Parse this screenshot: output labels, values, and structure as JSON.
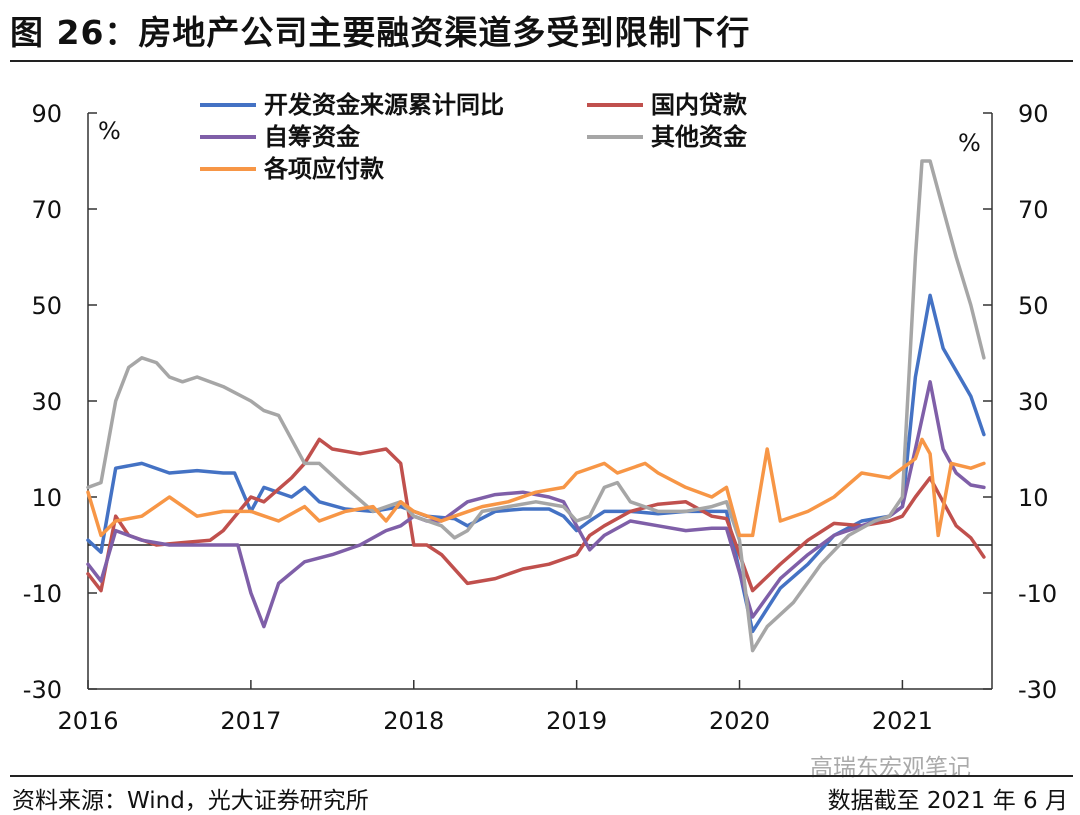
{
  "title": "图 26：房地产公司主要融资渠道多受到限制下行",
  "source": "资料来源：Wind，光大证券研究所",
  "cutoff": "数据截至 2021 年 6 月",
  "watermark": "高瑞东宏观笔记",
  "chart_data": {
    "type": "line",
    "ylim": [
      -30,
      90
    ],
    "yticks": [
      -30,
      -10,
      10,
      30,
      50,
      70,
      90
    ],
    "ylabel_left": "%",
    "ylabel_right": "%",
    "xlim": [
      2016.0,
      2021.55
    ],
    "xticks": [
      "2016",
      "2017",
      "2018",
      "2019",
      "2020",
      "2021"
    ],
    "zero_line": true,
    "legend_position": "top",
    "series": [
      {
        "name": "开发资金来源累计同比",
        "color": "#4472C4",
        "points": [
          [
            2016.0,
            1
          ],
          [
            2016.08,
            -1.5
          ],
          [
            2016.17,
            16
          ],
          [
            2016.33,
            17
          ],
          [
            2016.5,
            15
          ],
          [
            2016.67,
            15.5
          ],
          [
            2016.83,
            15
          ],
          [
            2016.9,
            15
          ],
          [
            2017.0,
            7
          ],
          [
            2017.08,
            12
          ],
          [
            2017.25,
            10
          ],
          [
            2017.33,
            12
          ],
          [
            2017.42,
            9
          ],
          [
            2017.58,
            7.5
          ],
          [
            2017.75,
            7
          ],
          [
            2017.92,
            8
          ],
          [
            2018.08,
            6
          ],
          [
            2018.25,
            5.5
          ],
          [
            2018.33,
            4
          ],
          [
            2018.5,
            7
          ],
          [
            2018.67,
            7.5
          ],
          [
            2018.83,
            7.5
          ],
          [
            2018.92,
            6
          ],
          [
            2019.0,
            3
          ],
          [
            2019.08,
            5
          ],
          [
            2019.17,
            7
          ],
          [
            2019.33,
            7
          ],
          [
            2019.5,
            6.5
          ],
          [
            2019.67,
            7
          ],
          [
            2019.83,
            7
          ],
          [
            2019.92,
            7
          ],
          [
            2020.08,
            -18
          ],
          [
            2020.25,
            -9
          ],
          [
            2020.42,
            -4
          ],
          [
            2020.58,
            2
          ],
          [
            2020.75,
            5
          ],
          [
            2020.92,
            6
          ],
          [
            2021.0,
            8
          ],
          [
            2021.08,
            35
          ],
          [
            2021.17,
            52
          ],
          [
            2021.25,
            41
          ],
          [
            2021.42,
            31
          ],
          [
            2021.5,
            23
          ]
        ]
      },
      {
        "name": "国内贷款",
        "color": "#C0504D",
        "points": [
          [
            2016.0,
            -6
          ],
          [
            2016.08,
            -9.5
          ],
          [
            2016.17,
            6
          ],
          [
            2016.25,
            2
          ],
          [
            2016.42,
            0
          ],
          [
            2016.58,
            0.5
          ],
          [
            2016.75,
            1
          ],
          [
            2016.83,
            3
          ],
          [
            2017.0,
            10
          ],
          [
            2017.08,
            9
          ],
          [
            2017.25,
            14
          ],
          [
            2017.33,
            17
          ],
          [
            2017.42,
            22
          ],
          [
            2017.5,
            20
          ],
          [
            2017.67,
            19
          ],
          [
            2017.83,
            20
          ],
          [
            2017.92,
            17
          ],
          [
            2018.0,
            0
          ],
          [
            2018.08,
            0
          ],
          [
            2018.17,
            -2
          ],
          [
            2018.33,
            -8
          ],
          [
            2018.5,
            -7
          ],
          [
            2018.67,
            -5
          ],
          [
            2018.83,
            -4
          ],
          [
            2019.0,
            -2
          ],
          [
            2019.08,
            2
          ],
          [
            2019.17,
            4
          ],
          [
            2019.33,
            7
          ],
          [
            2019.5,
            8.5
          ],
          [
            2019.67,
            9
          ],
          [
            2019.83,
            6
          ],
          [
            2019.92,
            5.5
          ],
          [
            2020.08,
            -9.5
          ],
          [
            2020.25,
            -4
          ],
          [
            2020.42,
            1
          ],
          [
            2020.58,
            4.5
          ],
          [
            2020.75,
            4
          ],
          [
            2020.92,
            5
          ],
          [
            2021.0,
            6
          ],
          [
            2021.08,
            10
          ],
          [
            2021.17,
            14
          ],
          [
            2021.25,
            9
          ],
          [
            2021.33,
            4
          ],
          [
            2021.42,
            1.5
          ],
          [
            2021.5,
            -2.5
          ]
        ]
      },
      {
        "name": "自筹资金",
        "color": "#7F5FA8",
        "points": [
          [
            2016.0,
            -4
          ],
          [
            2016.08,
            -7.5
          ],
          [
            2016.17,
            3
          ],
          [
            2016.33,
            1
          ],
          [
            2016.5,
            0
          ],
          [
            2016.67,
            0
          ],
          [
            2016.83,
            0
          ],
          [
            2016.92,
            0
          ],
          [
            2017.0,
            -10
          ],
          [
            2017.08,
            -17
          ],
          [
            2017.17,
            -8
          ],
          [
            2017.33,
            -3.5
          ],
          [
            2017.5,
            -2
          ],
          [
            2017.67,
            0
          ],
          [
            2017.83,
            3
          ],
          [
            2017.92,
            4
          ],
          [
            2018.0,
            6
          ],
          [
            2018.08,
            5
          ],
          [
            2018.17,
            5
          ],
          [
            2018.33,
            9
          ],
          [
            2018.5,
            10.5
          ],
          [
            2018.67,
            11
          ],
          [
            2018.83,
            10
          ],
          [
            2018.92,
            9
          ],
          [
            2019.0,
            4
          ],
          [
            2019.08,
            -1
          ],
          [
            2019.17,
            2
          ],
          [
            2019.33,
            5
          ],
          [
            2019.5,
            4
          ],
          [
            2019.67,
            3
          ],
          [
            2019.83,
            3.5
          ],
          [
            2019.92,
            3.5
          ],
          [
            2020.08,
            -15
          ],
          [
            2020.25,
            -7
          ],
          [
            2020.42,
            -2
          ],
          [
            2020.58,
            2
          ],
          [
            2020.75,
            4
          ],
          [
            2020.92,
            6
          ],
          [
            2021.0,
            8
          ],
          [
            2021.08,
            20
          ],
          [
            2021.17,
            34
          ],
          [
            2021.25,
            20
          ],
          [
            2021.33,
            15
          ],
          [
            2021.42,
            12.5
          ],
          [
            2021.5,
            12
          ]
        ]
      },
      {
        "name": "其他资金",
        "color": "#A6A6A6",
        "points": [
          [
            2016.0,
            12
          ],
          [
            2016.08,
            13
          ],
          [
            2016.17,
            30
          ],
          [
            2016.25,
            37
          ],
          [
            2016.33,
            39
          ],
          [
            2016.42,
            38
          ],
          [
            2016.5,
            35
          ],
          [
            2016.58,
            34
          ],
          [
            2016.67,
            35
          ],
          [
            2016.83,
            33
          ],
          [
            2017.0,
            30
          ],
          [
            2017.08,
            28
          ],
          [
            2017.17,
            27
          ],
          [
            2017.25,
            22
          ],
          [
            2017.33,
            17
          ],
          [
            2017.42,
            17
          ],
          [
            2017.58,
            12
          ],
          [
            2017.75,
            7
          ],
          [
            2017.92,
            9
          ],
          [
            2018.0,
            6
          ],
          [
            2018.17,
            4
          ],
          [
            2018.25,
            1.5
          ],
          [
            2018.33,
            3
          ],
          [
            2018.42,
            7
          ],
          [
            2018.58,
            8
          ],
          [
            2018.75,
            9
          ],
          [
            2018.92,
            8
          ],
          [
            2019.0,
            5
          ],
          [
            2019.08,
            6
          ],
          [
            2019.17,
            12
          ],
          [
            2019.25,
            13
          ],
          [
            2019.33,
            9
          ],
          [
            2019.5,
            7
          ],
          [
            2019.67,
            7
          ],
          [
            2019.83,
            8
          ],
          [
            2019.92,
            9
          ],
          [
            2020.0,
            1
          ],
          [
            2020.08,
            -22
          ],
          [
            2020.17,
            -17
          ],
          [
            2020.33,
            -12
          ],
          [
            2020.5,
            -4
          ],
          [
            2020.67,
            2
          ],
          [
            2020.83,
            5
          ],
          [
            2020.92,
            6
          ],
          [
            2021.0,
            10
          ],
          [
            2021.08,
            60
          ],
          [
            2021.12,
            80
          ],
          [
            2021.17,
            80
          ],
          [
            2021.25,
            70
          ],
          [
            2021.33,
            60
          ],
          [
            2021.42,
            50
          ],
          [
            2021.5,
            39
          ]
        ]
      },
      {
        "name": "各项应付款",
        "color": "#F79646",
        "points": [
          [
            2016.0,
            11
          ],
          [
            2016.08,
            2
          ],
          [
            2016.17,
            5
          ],
          [
            2016.33,
            6
          ],
          [
            2016.5,
            10
          ],
          [
            2016.67,
            6
          ],
          [
            2016.83,
            7
          ],
          [
            2017.0,
            7
          ],
          [
            2017.17,
            5
          ],
          [
            2017.33,
            8
          ],
          [
            2017.42,
            5
          ],
          [
            2017.58,
            7
          ],
          [
            2017.75,
            8
          ],
          [
            2017.83,
            5
          ],
          [
            2017.92,
            9
          ],
          [
            2018.0,
            7
          ],
          [
            2018.17,
            5
          ],
          [
            2018.25,
            6
          ],
          [
            2018.42,
            8
          ],
          [
            2018.58,
            9
          ],
          [
            2018.75,
            11
          ],
          [
            2018.92,
            12
          ],
          [
            2019.0,
            15
          ],
          [
            2019.17,
            17
          ],
          [
            2019.25,
            15
          ],
          [
            2019.42,
            17
          ],
          [
            2019.5,
            15
          ],
          [
            2019.67,
            12
          ],
          [
            2019.83,
            10
          ],
          [
            2019.92,
            12
          ],
          [
            2020.0,
            2
          ],
          [
            2020.08,
            2
          ],
          [
            2020.17,
            20
          ],
          [
            2020.25,
            5
          ],
          [
            2020.42,
            7
          ],
          [
            2020.58,
            10
          ],
          [
            2020.75,
            15
          ],
          [
            2020.92,
            14
          ],
          [
            2021.0,
            16
          ],
          [
            2021.08,
            18
          ],
          [
            2021.12,
            22
          ],
          [
            2021.17,
            19
          ],
          [
            2021.22,
            2
          ],
          [
            2021.3,
            17
          ],
          [
            2021.42,
            16
          ],
          [
            2021.5,
            17
          ]
        ]
      }
    ]
  }
}
